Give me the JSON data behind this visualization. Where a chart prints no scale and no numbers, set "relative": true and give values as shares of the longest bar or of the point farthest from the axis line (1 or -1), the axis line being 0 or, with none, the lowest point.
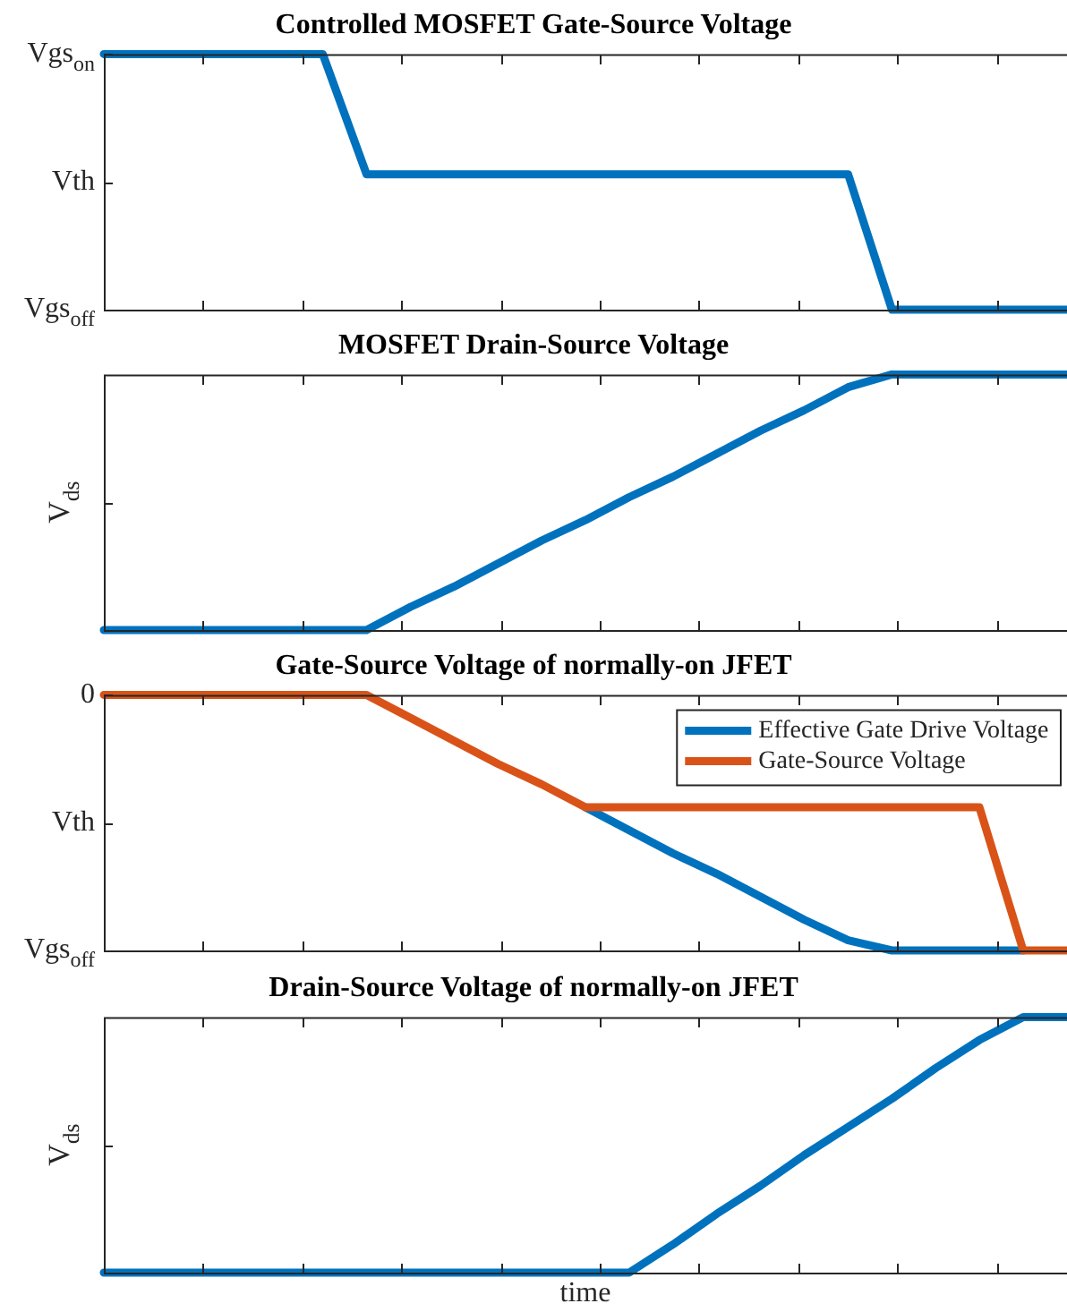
{
  "chart_data": [
    {
      "type": "line",
      "title": "Controlled MOSFET Gate-Source Voltage",
      "relative": true,
      "categories": [
        null,
        null,
        null,
        null,
        null,
        null,
        null,
        null,
        null,
        null,
        null,
        null,
        null,
        null,
        null,
        null,
        null,
        null,
        null,
        null,
        null,
        null,
        null
      ],
      "annotations": [
        "Vgs$_{on}$",
        "Vth",
        "Vgs$_{off}$"
      ],
      "grid": false,
      "legend": false,
      "marker": "none",
      "line_style": "solid",
      "series": [
        {
          "color": "#0072bd",
          "values": [
            1,
            1,
            1,
            1,
            1,
            1,
            0.53,
            0.53,
            0.53,
            0.53,
            0.53,
            0.53,
            0.53,
            0.53,
            0.53,
            0.53,
            0.53,
            0.53,
            0,
            0,
            0,
            0,
            0
          ]
        }
      ]
    },
    {
      "type": "line",
      "title": "MOSFET Drain-Source Voltage",
      "ylabel": "V$_{ds}$",
      "relative": true,
      "categories": [
        null,
        null,
        null,
        null,
        null,
        null,
        null,
        null,
        null,
        null,
        null,
        null,
        null,
        null,
        null,
        null,
        null,
        null,
        null,
        null,
        null,
        null,
        null
      ],
      "grid": false,
      "legend": false,
      "marker": "none",
      "line_style": "solid",
      "series": [
        {
          "color": "#0072bd",
          "values": [
            0,
            0,
            0,
            0,
            0,
            0,
            0,
            0.09,
            0.17,
            0.26,
            0.35,
            0.43,
            0.52,
            0.6,
            0.69,
            0.78,
            0.86,
            0.95,
            1,
            1,
            1,
            1,
            1
          ]
        }
      ]
    },
    {
      "type": "line",
      "title": "Gate-Source Voltage of normally-on JFET",
      "relative": true,
      "categories": [
        null,
        null,
        null,
        null,
        null,
        null,
        null,
        null,
        null,
        null,
        null,
        null,
        null,
        null,
        null,
        null,
        null,
        null,
        null,
        null,
        null,
        null,
        null
      ],
      "annotations": [
        "0",
        "Vth",
        "Vgs$_{off}$"
      ],
      "grid": false,
      "legend": "top right",
      "marker": "none",
      "line_style": "solid",
      "series": [
        {
          "name": "Effective Gate Drive Voltage",
          "color": "#0072bd",
          "values": [
            null,
            null,
            null,
            null,
            null,
            null,
            null,
            null,
            null,
            null,
            null,
            -0.44,
            -0.53,
            -0.62,
            -0.7,
            -0.79,
            -0.88,
            -0.96,
            -1,
            -1,
            -1,
            -1,
            null
          ]
        },
        {
          "name": "Gate-Source Voltage",
          "color": "#d95319",
          "values": [
            0,
            0,
            0,
            0,
            0,
            0,
            0,
            -0.09,
            -0.18,
            -0.27,
            -0.35,
            -0.44,
            -0.44,
            -0.44,
            -0.44,
            -0.44,
            -0.44,
            -0.44,
            -0.44,
            -0.44,
            -0.44,
            -1,
            -1
          ]
        }
      ]
    },
    {
      "type": "line",
      "title": "Drain-Source Voltage of normally-on JFET",
      "xlabel": "time",
      "ylabel": "V$_{ds}$",
      "relative": true,
      "categories": [
        null,
        null,
        null,
        null,
        null,
        null,
        null,
        null,
        null,
        null,
        null,
        null,
        null,
        null,
        null,
        null,
        null,
        null,
        null,
        null,
        null,
        null,
        null
      ],
      "grid": false,
      "legend": false,
      "marker": "none",
      "line_style": "solid",
      "series": [
        {
          "color": "#0072bd",
          "values": [
            0,
            0,
            0,
            0,
            0,
            0,
            0,
            0,
            0,
            0,
            0,
            0,
            0,
            0.11,
            0.23,
            0.34,
            0.46,
            0.57,
            0.68,
            0.8,
            0.91,
            1,
            1
          ]
        }
      ]
    }
  ]
}
